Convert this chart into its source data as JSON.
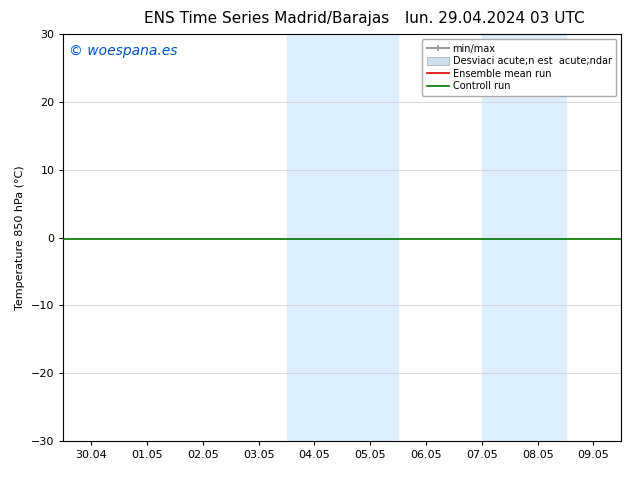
{
  "title": "ENS Time Series Madrid/Barajas     lun. 29.04.2024 03 UTC",
  "title_left": "ENS Time Series Madrid/Barajas",
  "title_right": "lun. 29.04.2024 03 UTC",
  "ylabel": "Temperature 850 hPa (°C)",
  "watermark": "© woespana.es",
  "watermark_color": "#0055cc",
  "ylim": [
    -30,
    30
  ],
  "yticks": [
    -30,
    -20,
    -10,
    0,
    10,
    20,
    30
  ],
  "x_labels": [
    "30.04",
    "01.05",
    "02.05",
    "03.05",
    "04.05",
    "05.05",
    "06.05",
    "07.05",
    "08.05",
    "09.05"
  ],
  "shaded_bands": [
    {
      "xmin": 3.5,
      "xmax": 5.5,
      "color": "#ddeeff"
    },
    {
      "xmin": 7.0,
      "xmax": 8.5,
      "color": "#ddeeff"
    }
  ],
  "hline_y": -0.2,
  "hline_color": "#007700",
  "hline_lw": 1.2,
  "bg_color": "#ffffff",
  "plot_bg_color": "#ffffff",
  "legend_label1": "min/max",
  "legend_label2": "Desviaci acute;n est  acute;ndar",
  "legend_label3": "Ensemble mean run",
  "legend_label4": "Controll run",
  "legend_color1": "#999999",
  "legend_color2": "#cce0f0",
  "legend_color3": "#dd0000",
  "legend_color4": "#007700",
  "title_fontsize": 11,
  "tick_fontsize": 8,
  "ylabel_fontsize": 8,
  "watermark_fontsize": 10,
  "legend_fontsize": 7
}
